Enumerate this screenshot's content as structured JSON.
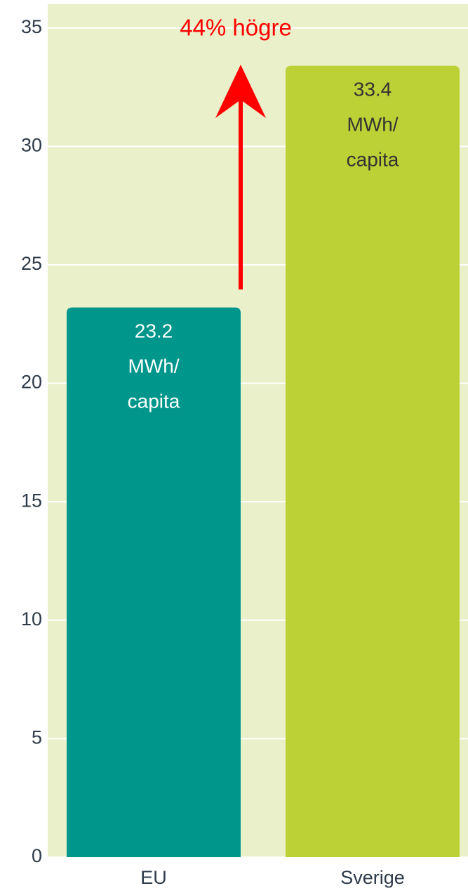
{
  "chart_data": {
    "type": "bar",
    "annotation": "44% högre",
    "categories": [
      "EU",
      "Sverige"
    ],
    "values": [
      23.2,
      33.4
    ],
    "value_labels": [
      "23.2 MWh/ capita",
      "33.4 MWh/ capita"
    ],
    "colors": [
      "#00968c",
      "#bcd135"
    ],
    "value_label_colors": [
      "#ffffff",
      "#333333"
    ],
    "ylim": [
      0,
      36
    ],
    "yticks": [
      0,
      5,
      10,
      15,
      20,
      25,
      30,
      35
    ],
    "grid": true
  }
}
